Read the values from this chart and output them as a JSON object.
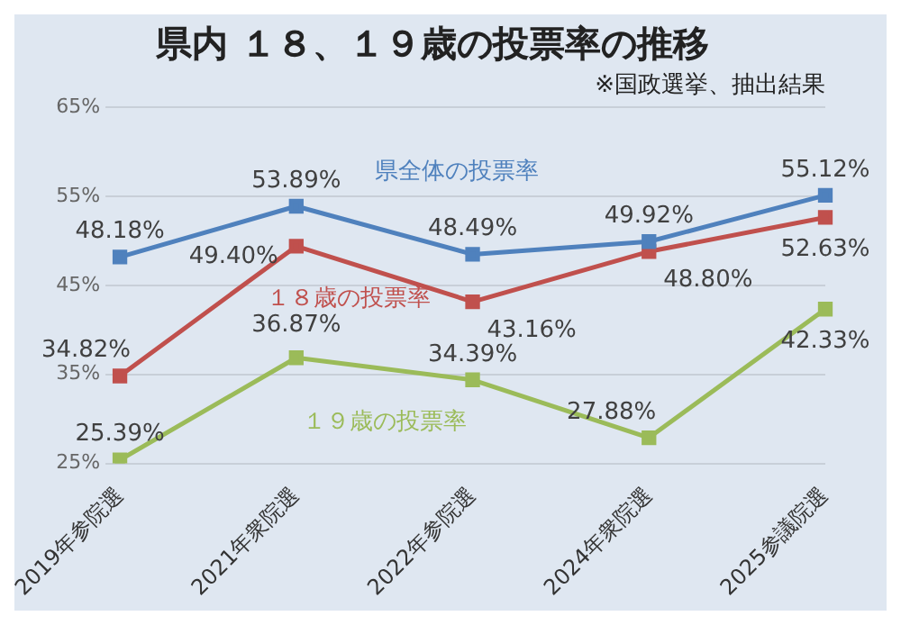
{
  "chart_data": {
    "type": "line",
    "title": "県内 １８、１９歳の投票率の推移",
    "subtitle": "※国政選挙、抽出結果",
    "categories": [
      "2019年参院選",
      "2021年衆院選",
      "2022年参院選",
      "2024年衆院選",
      "2025参議院選"
    ],
    "series": [
      {
        "name": "県全体の投票率",
        "color": "#4f81bd",
        "values": [
          48.18,
          53.89,
          48.49,
          49.92,
          55.12
        ],
        "value_labels": [
          "48.18%",
          "53.89%",
          "48.49%",
          "49.92%",
          "55.12%"
        ]
      },
      {
        "name": "１８歳の投票率",
        "color": "#c0504d",
        "values": [
          34.82,
          49.4,
          43.16,
          48.8,
          52.63
        ],
        "value_labels": [
          "34.82%",
          "49.40%",
          "43.16%",
          "48.80%",
          "52.63%"
        ]
      },
      {
        "name": "１９歳の投票率",
        "color": "#9bbb59",
        "values": [
          25.39,
          36.87,
          34.39,
          27.88,
          42.33
        ],
        "value_labels": [
          "25.39%",
          "36.87%",
          "34.39%",
          "27.88%",
          "42.33%"
        ]
      }
    ],
    "ylim": [
      25,
      65
    ],
    "yticks": [
      {
        "value": 25,
        "label": "25%"
      },
      {
        "value": 35,
        "label": "35%"
      },
      {
        "value": 45,
        "label": "45%"
      },
      {
        "value": 55,
        "label": "55%"
      },
      {
        "value": 65,
        "label": "65%"
      }
    ],
    "grid": "y",
    "legend": false,
    "marker": "square",
    "line_style": "solid"
  }
}
